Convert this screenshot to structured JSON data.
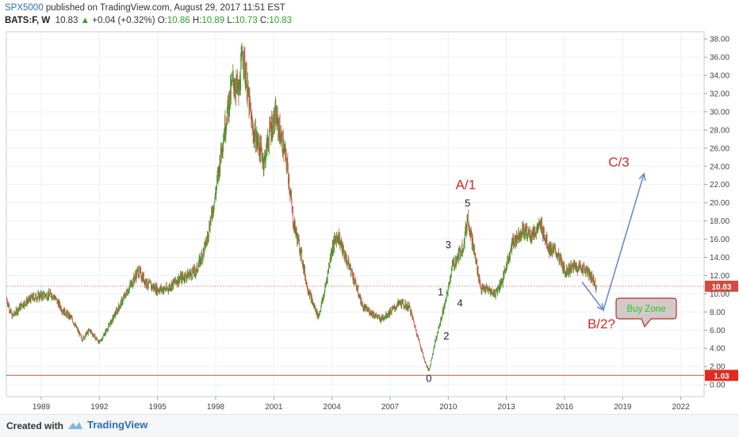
{
  "header": {
    "publisher": "SPX5000",
    "published_text": "published on TradingView.com, August 29, 2017 11:51 EST",
    "symbol": "BATS:F, W",
    "last": "10.83",
    "change": "+0.04 (+0.32%)",
    "o_label": "O:",
    "o_value": "10.86",
    "h_label": "H:",
    "h_value": "10.89",
    "l_label": "L:",
    "l_value": "10.73",
    "c_label": "C:",
    "c_value": "10.83"
  },
  "footer": {
    "created_with": "Created with",
    "brand": "TradingView"
  },
  "colors": {
    "up": "#2aa52a",
    "down": "#d64b3f",
    "arrow": "#6d8cc8",
    "wave_red": "#d42a2a",
    "buyzone_bg": "#d3c9c9",
    "buyzone_text": "#22cc22"
  },
  "chart_data": {
    "type": "candlestick",
    "y_ticks": [
      "38.00",
      "36.00",
      "34.00",
      "32.00",
      "30.00",
      "28.00",
      "26.00",
      "24.00",
      "22.00",
      "20.00",
      "18.00",
      "16.00",
      "14.00",
      "12.00",
      "10.00",
      "8.00",
      "6.00",
      "4.00",
      "2.00",
      "0.00"
    ],
    "ylim": [
      0,
      39
    ],
    "x_ticks": [
      "1989",
      "1992",
      "1995",
      "1998",
      "2001",
      "2004",
      "2007",
      "2010",
      "2013",
      "2016",
      "2019",
      "2022"
    ],
    "xlim": [
      1987.2,
      2023.2
    ],
    "price_path": [
      [
        1987.2,
        9.5
      ],
      [
        1987.5,
        7.5
      ],
      [
        1988.0,
        8.8
      ],
      [
        1988.6,
        9.6
      ],
      [
        1989.0,
        9.8
      ],
      [
        1989.6,
        9.9
      ],
      [
        1990.1,
        8.2
      ],
      [
        1990.6,
        7.2
      ],
      [
        1991.1,
        5.0
      ],
      [
        1991.5,
        6.0
      ],
      [
        1992.0,
        4.6
      ],
      [
        1992.5,
        6.5
      ],
      [
        1993.0,
        8.5
      ],
      [
        1993.5,
        10.5
      ],
      [
        1994.0,
        12.5
      ],
      [
        1994.5,
        11.0
      ],
      [
        1995.0,
        10.5
      ],
      [
        1995.5,
        10.5
      ],
      [
        1996.0,
        11.5
      ],
      [
        1996.5,
        12.0
      ],
      [
        1997.0,
        12.5
      ],
      [
        1997.5,
        15.5
      ],
      [
        1998.0,
        21.0
      ],
      [
        1998.3,
        26.0
      ],
      [
        1998.6,
        30.0
      ],
      [
        1998.9,
        33.5
      ],
      [
        1999.2,
        32.0
      ],
      [
        1999.4,
        36.8
      ],
      [
        1999.6,
        33.0
      ],
      [
        1999.9,
        28.0
      ],
      [
        2000.2,
        26.5
      ],
      [
        2000.5,
        24.5
      ],
      [
        2000.8,
        28.0
      ],
      [
        2001.1,
        29.5
      ],
      [
        2001.4,
        27.0
      ],
      [
        2001.7,
        24.0
      ],
      [
        2002.0,
        18.0
      ],
      [
        2002.4,
        14.5
      ],
      [
        2002.7,
        11.0
      ],
      [
        2003.0,
        9.0
      ],
      [
        2003.3,
        7.5
      ],
      [
        2003.6,
        10.0
      ],
      [
        2004.0,
        15.0
      ],
      [
        2004.3,
        16.5
      ],
      [
        2004.6,
        14.5
      ],
      [
        2005.0,
        12.5
      ],
      [
        2005.3,
        10.5
      ],
      [
        2005.6,
        8.5
      ],
      [
        2006.0,
        8.0
      ],
      [
        2006.5,
        7.2
      ],
      [
        2007.0,
        8.0
      ],
      [
        2007.5,
        9.0
      ],
      [
        2008.0,
        8.5
      ],
      [
        2008.4,
        5.5
      ],
      [
        2008.8,
        2.5
      ],
      [
        2009.0,
        1.5
      ],
      [
        2009.3,
        4.5
      ],
      [
        2009.6,
        7.0
      ],
      [
        2009.9,
        9.5
      ],
      [
        2010.2,
        13.0
      ],
      [
        2010.5,
        14.0
      ],
      [
        2010.8,
        15.5
      ],
      [
        2011.0,
        18.5
      ],
      [
        2011.3,
        15.0
      ],
      [
        2011.7,
        10.5
      ],
      [
        2012.0,
        10.5
      ],
      [
        2012.4,
        10.0
      ],
      [
        2012.8,
        11.5
      ],
      [
        2013.3,
        15.5
      ],
      [
        2013.8,
        17.0
      ],
      [
        2014.3,
        16.5
      ],
      [
        2014.8,
        17.5
      ],
      [
        2015.2,
        15.0
      ],
      [
        2015.6,
        14.5
      ],
      [
        2016.0,
        12.5
      ],
      [
        2016.5,
        13.0
      ],
      [
        2017.0,
        12.8
      ],
      [
        2017.4,
        11.8
      ],
      [
        2017.65,
        10.83
      ]
    ],
    "series": [
      {
        "name": "A/1",
        "x": 2010.9,
        "y": 21.5
      },
      {
        "name": "B/2?",
        "x": 2017.9,
        "y": 6.2
      },
      {
        "name": "C/3",
        "x": 2018.8,
        "y": 24.0
      }
    ],
    "wave_labels": [
      {
        "label": "0",
        "x": 2009.0,
        "y": 0.3
      },
      {
        "label": "1",
        "x": 2009.6,
        "y": 9.8
      },
      {
        "label": "2",
        "x": 2009.9,
        "y": 5.0
      },
      {
        "label": "3",
        "x": 2010.0,
        "y": 15.0
      },
      {
        "label": "4",
        "x": 2010.6,
        "y": 8.6
      },
      {
        "label": "5",
        "x": 2011.0,
        "y": 19.6
      }
    ],
    "annotations": {
      "buy_zone": "Buy Zone",
      "arrow_path": [
        [
          2016.9,
          11.3
        ],
        [
          2018.0,
          8.2
        ],
        [
          2020.1,
          23.2
        ]
      ]
    },
    "last_price_label": "10.83",
    "support_price_label": "1.03",
    "last_price": 10.83,
    "support_price": 1.03
  }
}
